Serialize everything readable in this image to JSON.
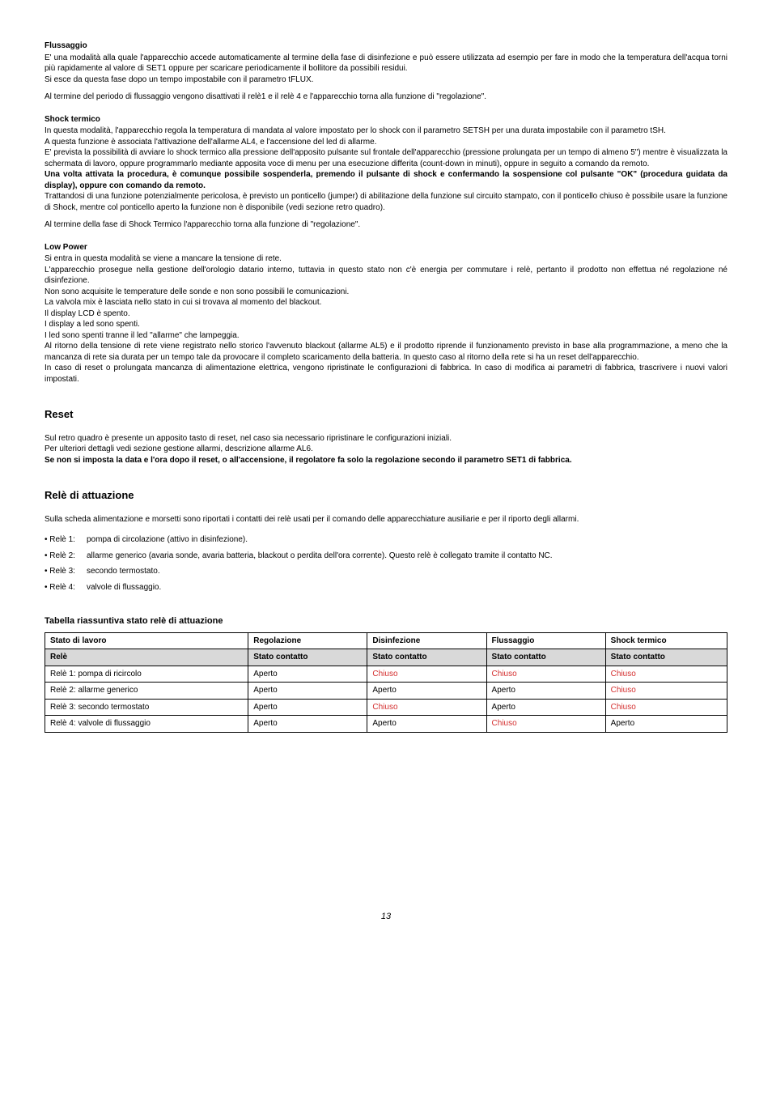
{
  "flussaggio": {
    "title": "Flussaggio",
    "p1": "E' una modalità alla quale l'apparecchio accede automaticamente al termine della fase di disinfezione e può essere utilizzata ad esempio per fare in modo che la temperatura dell'acqua torni più rapidamente al valore di SET1 oppure per scaricare periodicamente il bollitore da possibili residui.",
    "p2": "Si esce da questa fase dopo un tempo impostabile con il parametro tFLUX.",
    "p3": "Al termine del periodo di flussaggio vengono disattivati il relè1 e il relè 4 e l'apparecchio torna alla funzione di \"regolazione\"."
  },
  "shock": {
    "title": "Shock termico",
    "p1": "In questa modalità, l'apparecchio regola la temperatura di mandata al valore impostato per lo shock con il parametro SETSH per una durata impostabile con il parametro tSH.",
    "p2": "A questa funzione è associata l'attivazione dell'allarme AL4, e l'accensione del led di allarme.",
    "p3": "E' prevista la possibilità di avviare lo shock termico alla pressione dell'apposito pulsante sul frontale dell'apparecchio (pressione prolungata per un tempo di almeno 5\") mentre è visualizzata la schermata di lavoro, oppure programmarlo mediante apposita voce di menu per una esecuzione differita (count-down in minuti), oppure in seguito a comando da remoto.",
    "p4": "Una volta attivata la procedura, è comunque possibile sospenderla, premendo il pulsante di shock e confermando la sospensione col pulsante \"OK\" (procedura guidata da display), oppure con comando da remoto.",
    "p5": "Trattandosi di una funzione potenzialmente pericolosa, è previsto un ponticello (jumper) di abilitazione della funzione sul circuito stampato, con il ponticello chiuso è possibile usare la funzione di Shock, mentre col ponticello aperto la funzione non è disponibile (vedi sezione retro quadro).",
    "p6": "Al termine della fase di Shock Termico l'apparecchio torna alla funzione di \"regolazione\"."
  },
  "lowpower": {
    "title": "Low Power",
    "p1": "Si entra in questa modalità se viene a mancare la tensione di rete.",
    "p2": "L'apparecchio prosegue nella gestione dell'orologio datario interno, tuttavia in questo stato non c'è energia per commutare i relè, pertanto il prodotto non effettua né regolazione né disinfezione.",
    "p3": "Non sono acquisite le temperature delle sonde e non sono possibili le comunicazioni.",
    "p4": "La valvola mix è lasciata nello stato in cui si trovava al momento del blackout.",
    "p5": "Il display LCD è spento.",
    "p6": "I display a led sono spenti.",
    "p7": "I led sono spenti tranne il led \"allarme\" che lampeggia.",
    "p8": "Al ritorno della tensione di rete viene registrato nello storico l'avvenuto blackout (allarme AL5) e il prodotto riprende il funzionamento previsto in base alla programmazione, a meno che la mancanza di rete sia durata per un tempo tale da provocare il completo scaricamento della batteria. In questo caso al ritorno della rete si ha un reset dell'apparecchio.",
    "p9": "In caso di reset o prolungata mancanza di alimentazione elettrica, vengono ripristinate le configurazioni di fabbrica. In caso di modifica ai parametri di fabbrica, trascrivere i nuovi valori impostati."
  },
  "reset": {
    "title": "Reset",
    "p1": "Sul retro quadro è presente un apposito tasto di reset, nel caso sia necessario ripristinare le configurazioni iniziali.",
    "p2": "Per ulteriori dettagli vedi sezione gestione allarmi, descrizione allarme AL6.",
    "p3": "Se non si imposta la data e l'ora dopo il reset, o all'accensione, il regolatore fa solo la regolazione secondo il parametro SET1 di fabbrica."
  },
  "rele": {
    "title": "Relè di attuazione",
    "intro": "Sulla scheda alimentazione e morsetti sono riportati i contatti dei relè usati per il comando delle apparecchiature ausiliarie e per il riporto degli allarmi.",
    "items": [
      {
        "label": "• Relè 1:",
        "text": "pompa di circolazione (attivo in disinfezione)."
      },
      {
        "label": "• Relè 2:",
        "text": "allarme generico (avaria sonde, avaria batteria, blackout o perdita dell'ora corrente). Questo relè è collegato tramite il contatto NC."
      },
      {
        "label": "• Relè 3:",
        "text": "secondo termostato."
      },
      {
        "label": "• Relè 4:",
        "text": "valvole di flussaggio."
      }
    ]
  },
  "table": {
    "title": "Tabella riassuntiva stato relè di attuazione",
    "header": [
      "Stato di lavoro",
      "Regolazione",
      "Disinfezione",
      "Flussaggio",
      "Shock termico"
    ],
    "subheader": [
      "Relè",
      "Stato contatto",
      "Stato contatto",
      "Stato contatto",
      "Stato contatto"
    ],
    "rows": [
      {
        "c0": "Relè 1: pompa di ricircolo",
        "c1": "Aperto",
        "c2": {
          "v": "Chiuso",
          "red": true
        },
        "c3": {
          "v": "Chiuso",
          "red": true
        },
        "c4": {
          "v": "Chiuso",
          "red": true
        }
      },
      {
        "c0": "Relè 2: allarme generico",
        "c1": "Aperto",
        "c2": {
          "v": "Aperto",
          "red": false
        },
        "c3": {
          "v": "Aperto",
          "red": false
        },
        "c4": {
          "v": "Chiuso",
          "red": true
        }
      },
      {
        "c0": "Relè 3: secondo termostato",
        "c1": "Aperto",
        "c2": {
          "v": "Chiuso",
          "red": true
        },
        "c3": {
          "v": "Aperto",
          "red": false
        },
        "c4": {
          "v": "Chiuso",
          "red": true
        }
      },
      {
        "c0": "Relè 4: valvole di flussaggio",
        "c1": "Aperto",
        "c2": {
          "v": "Aperto",
          "red": false
        },
        "c3": {
          "v": "Chiuso",
          "red": true
        },
        "c4": {
          "v": "Aperto",
          "red": false
        }
      }
    ]
  },
  "page": "13"
}
